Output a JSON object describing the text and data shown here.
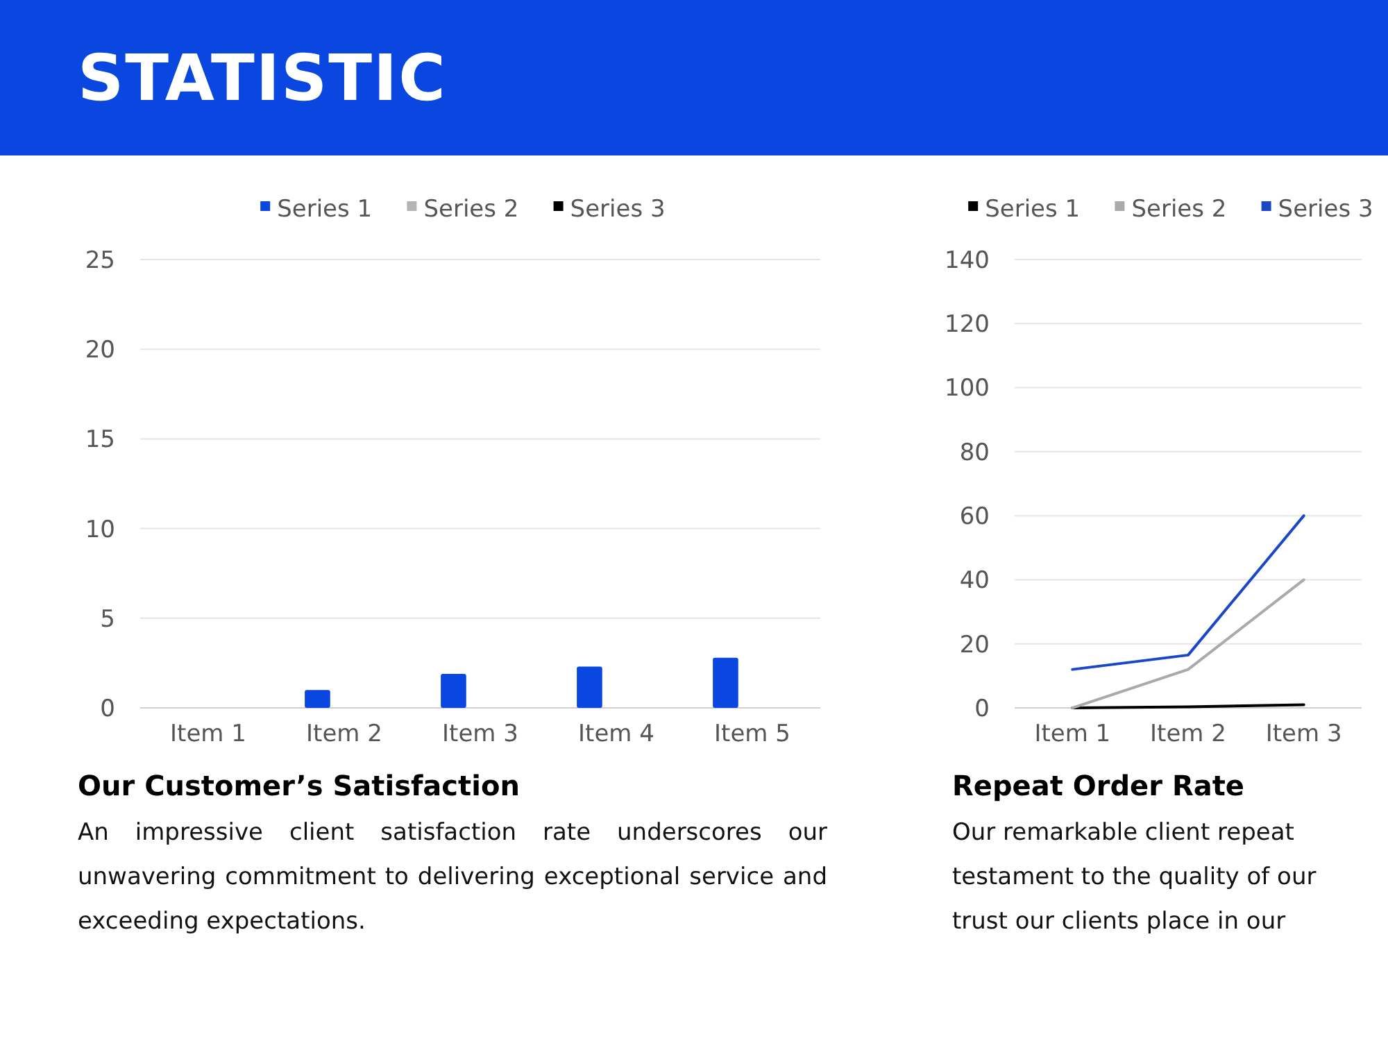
{
  "chart_data": [
    {
      "type": "other",
      "title": "STATISTIC"
    },
    {
      "type": "bar",
      "title": "Our Customer’s Satisfaction",
      "annotations": [
        "An impressive client satisfaction rate underscores our unwavering commitment to delivering exceptional service and exceeding expectations."
      ],
      "categories": [
        "Item 1",
        "Item 2",
        "Item 3",
        "Item 4",
        "Item 5"
      ],
      "series": [
        {
          "name": "Series 1",
          "color": "#0a47e0",
          "values": [
            0,
            1,
            1.9,
            2.3,
            2.8
          ]
        },
        {
          "name": "Series 2",
          "color": "#b4b4b4",
          "values": [
            0,
            0,
            0,
            0,
            0
          ]
        },
        {
          "name": "Series 3",
          "color": "#000000",
          "values": [
            0,
            0,
            0,
            0,
            0
          ]
        }
      ],
      "ylim": [
        0,
        25
      ],
      "yticks": [
        0,
        5,
        10,
        15,
        20,
        25
      ],
      "grid": "y",
      "legend": "top"
    },
    {
      "type": "line",
      "title": "Repeat Order Rate",
      "annotations": [
        "Our remarkable client repeat",
        "testament to the quality of our",
        "trust our clients place in our"
      ],
      "categories": [
        "Item 1",
        "Item 2",
        "Item 3"
      ],
      "series": [
        {
          "name": "Series 1",
          "color": "#000000",
          "values": [
            0,
            0.3,
            1
          ]
        },
        {
          "name": "Series 2",
          "color": "#aaaaaa",
          "values": [
            0,
            12,
            40
          ]
        },
        {
          "name": "Series 3",
          "color": "#1a47c8",
          "values": [
            12,
            16.5,
            60
          ]
        }
      ],
      "ylim": [
        0,
        140
      ],
      "yticks": [
        0,
        20,
        40,
        60,
        80,
        100,
        120,
        140
      ],
      "grid": "y",
      "legend": "top",
      "marker": "none",
      "line_style": "solid"
    }
  ]
}
